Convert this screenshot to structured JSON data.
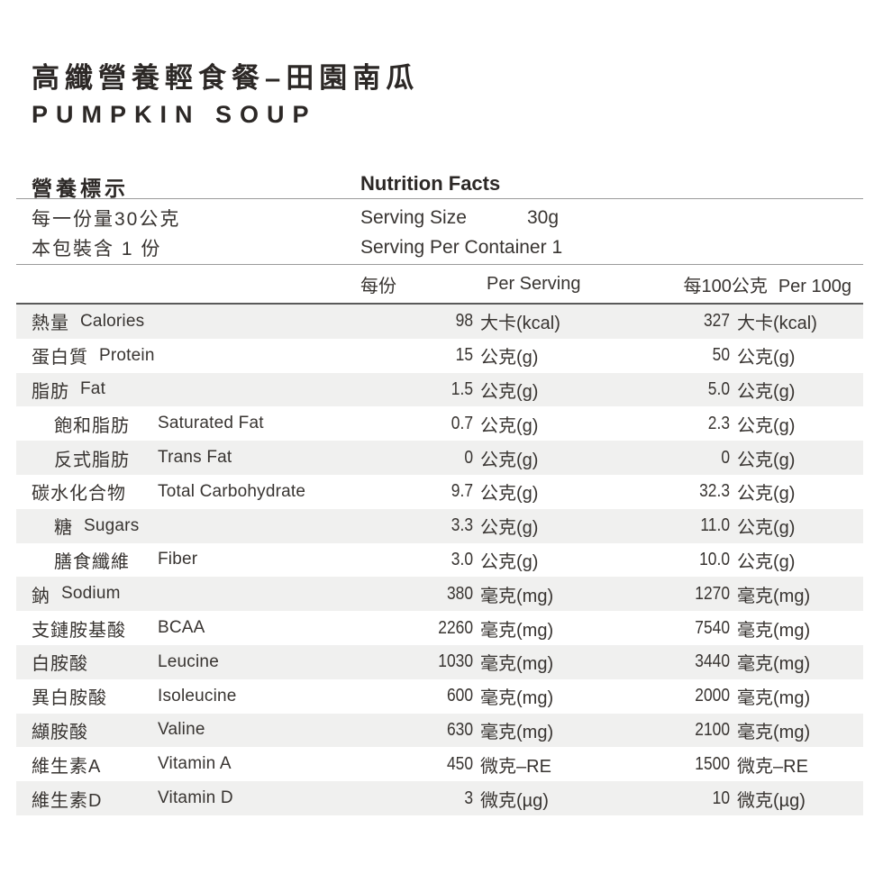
{
  "title": {
    "zh": "高纖營養輕食餐–田園南瓜",
    "en": "PUMPKIN SOUP"
  },
  "facts_header": {
    "zh": "營養標示",
    "en": "Nutrition Facts"
  },
  "serving": {
    "size_zh": "每一份量30公克",
    "size_en": "Serving Size",
    "size_value": "30g",
    "container_zh": "本包裝含 1 份",
    "container_en": "Serving Per Container 1"
  },
  "column_header": {
    "per_serving_zh": "每份",
    "per_serving_en": "Per Serving",
    "per_100g_zh": "每100公克",
    "per_100g_en": "Per 100g"
  },
  "colors": {
    "stripe": "#f0f0ef",
    "rule_thin": "#9b9b9b",
    "rule_thick": "#5a5a5a",
    "text": "#383431",
    "heading": "#2c2826"
  },
  "rows": [
    {
      "zh": "熱量",
      "en": "Calories",
      "inline": true,
      "indent": false,
      "ps_value": "98",
      "ps_unit": "大卡(kcal)",
      "p100_value": "327",
      "p100_unit": "大卡(kcal)"
    },
    {
      "zh": "蛋白質",
      "en": "Protein",
      "inline": true,
      "indent": false,
      "ps_value": "15",
      "ps_unit": "公克(g)",
      "p100_value": "50",
      "p100_unit": "公克(g)"
    },
    {
      "zh": "脂肪",
      "en": "Fat",
      "inline": true,
      "indent": false,
      "ps_value": "1.5",
      "ps_unit": "公克(g)",
      "p100_value": "5.0",
      "p100_unit": "公克(g)"
    },
    {
      "zh": "飽和脂肪",
      "en": "Saturated Fat",
      "inline": false,
      "indent": true,
      "ps_value": "0.7",
      "ps_unit": "公克(g)",
      "p100_value": "2.3",
      "p100_unit": "公克(g)"
    },
    {
      "zh": "反式脂肪",
      "en": "Trans Fat",
      "inline": false,
      "indent": true,
      "ps_value": "0",
      "ps_unit": "公克(g)",
      "p100_value": "0",
      "p100_unit": "公克(g)"
    },
    {
      "zh": "碳水化合物",
      "en": "Total Carbohydrate",
      "inline": false,
      "indent": false,
      "ps_value": "9.7",
      "ps_unit": "公克(g)",
      "p100_value": "32.3",
      "p100_unit": "公克(g)"
    },
    {
      "zh": "糖",
      "en": "Sugars",
      "inline": true,
      "indent": true,
      "ps_value": "3.3",
      "ps_unit": "公克(g)",
      "p100_value": "11.0",
      "p100_unit": "公克(g)"
    },
    {
      "zh": "膳食纖維",
      "en": "Fiber",
      "inline": false,
      "indent": true,
      "ps_value": "3.0",
      "ps_unit": "公克(g)",
      "p100_value": "10.0",
      "p100_unit": "公克(g)"
    },
    {
      "zh": "鈉",
      "en": "Sodium",
      "inline": true,
      "indent": false,
      "ps_value": "380",
      "ps_unit": "毫克(mg)",
      "p100_value": "1270",
      "p100_unit": "毫克(mg)"
    },
    {
      "zh": "支鏈胺基酸",
      "en": "BCAA",
      "inline": false,
      "indent": false,
      "ps_value": "2260",
      "ps_unit": "毫克(mg)",
      "p100_value": "7540",
      "p100_unit": "毫克(mg)"
    },
    {
      "zh": "白胺酸",
      "en": "Leucine",
      "inline": false,
      "indent": false,
      "ps_value": "1030",
      "ps_unit": "毫克(mg)",
      "p100_value": "3440",
      "p100_unit": "毫克(mg)"
    },
    {
      "zh": "異白胺酸",
      "en": "Isoleucine",
      "inline": false,
      "indent": false,
      "ps_value": "600",
      "ps_unit": "毫克(mg)",
      "p100_value": "2000",
      "p100_unit": "毫克(mg)"
    },
    {
      "zh": "纈胺酸",
      "en": "Valine",
      "inline": false,
      "indent": false,
      "ps_value": "630",
      "ps_unit": "毫克(mg)",
      "p100_value": "2100",
      "p100_unit": "毫克(mg)"
    },
    {
      "zh": "維生素A",
      "en": "Vitamin A",
      "inline": false,
      "indent": false,
      "ps_value": "450",
      "ps_unit": "微克–RE",
      "p100_value": "1500",
      "p100_unit": "微克–RE"
    },
    {
      "zh": "維生素D",
      "en": "Vitamin D",
      "inline": false,
      "indent": false,
      "ps_value": "3",
      "ps_unit": "微克(µg)",
      "p100_value": "10",
      "p100_unit": "微克(µg)"
    }
  ]
}
